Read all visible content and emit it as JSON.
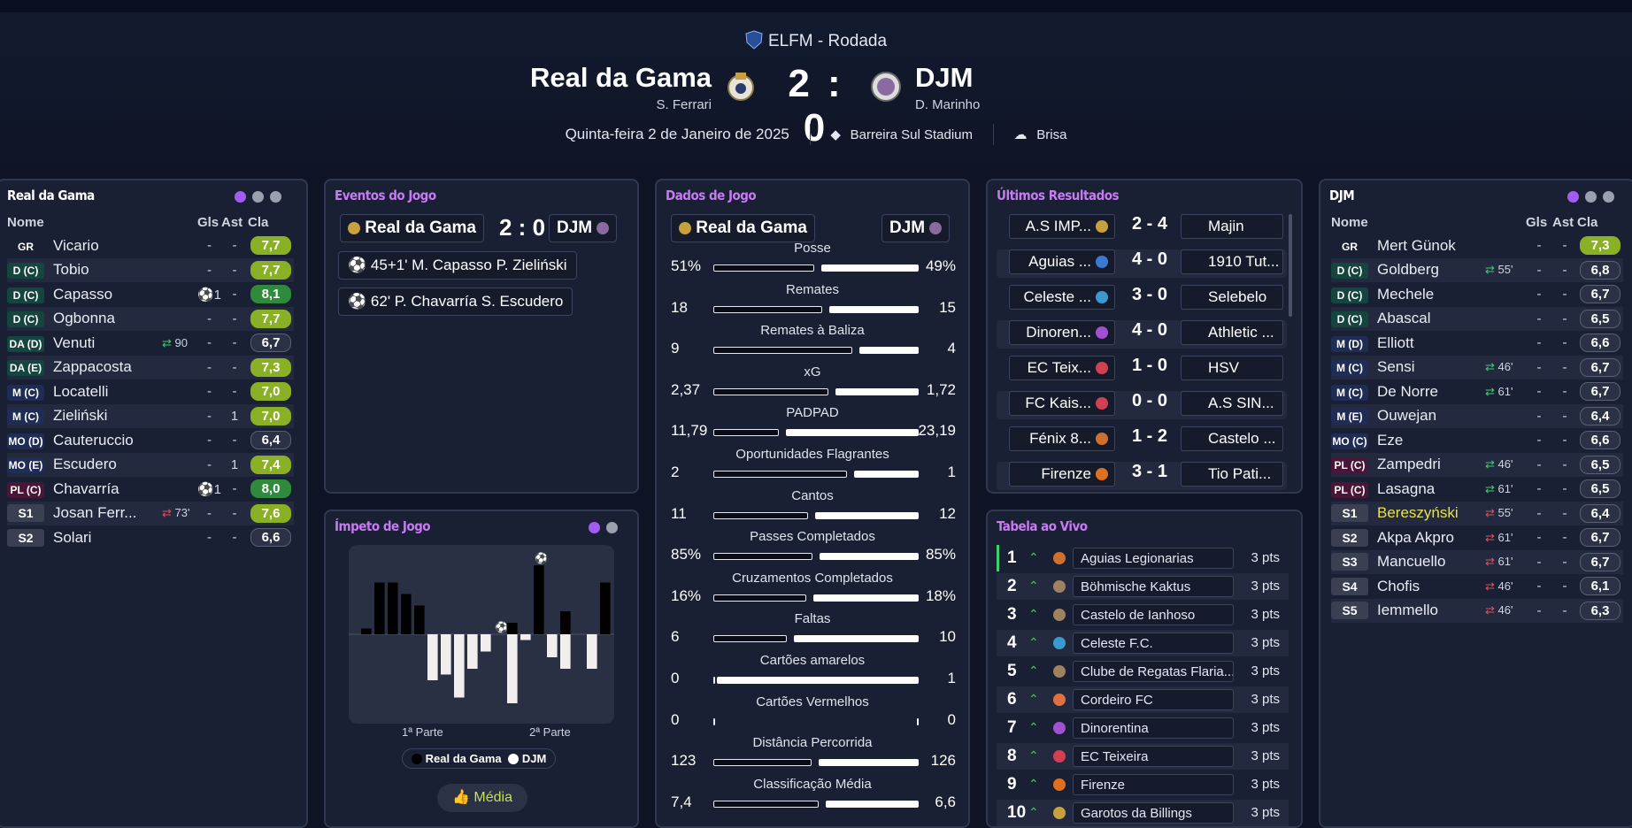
{
  "header": {
    "competition": "ELFM - Rodada",
    "home_team": "Real da Gama",
    "home_coach": "S. Ferrari",
    "away_team": "DJM",
    "away_coach": "D. Marinho",
    "score": "2 : 0",
    "date": "Quinta-feira 2 de Janeiro de 2025",
    "stadium": "Barreira Sul Stadium",
    "weather": "Brisa"
  },
  "home_panel": {
    "title": "Real da Gama",
    "cols": {
      "name": "Nome",
      "gls": "Gls",
      "ast": "Ast",
      "cla": "Cla"
    },
    "players": [
      {
        "pos": "GR",
        "name": "Vicario",
        "gls": "-",
        "ast": "-",
        "rating": "7,7",
        "sub": ""
      },
      {
        "pos": "D (C)",
        "name": "Tobio",
        "gls": "-",
        "ast": "-",
        "rating": "7,7",
        "sub": ""
      },
      {
        "pos": "D (C)",
        "name": "Capasso",
        "gls": "⚽1",
        "ast": "-",
        "rating": "8,1",
        "sub": ""
      },
      {
        "pos": "D (C)",
        "name": "Ogbonna",
        "gls": "-",
        "ast": "-",
        "rating": "7,7",
        "sub": ""
      },
      {
        "pos": "DA (D)",
        "name": "Venuti",
        "gls": "-",
        "ast": "-",
        "rating": "6,7",
        "sub": "90"
      },
      {
        "pos": "DA (E)",
        "name": "Zappacosta",
        "gls": "-",
        "ast": "-",
        "rating": "7,3",
        "sub": ""
      },
      {
        "pos": "M (C)",
        "name": "Locatelli",
        "gls": "-",
        "ast": "-",
        "rating": "7,0",
        "sub": ""
      },
      {
        "pos": "M (C)",
        "name": "Zieliński",
        "gls": "-",
        "ast": "1",
        "rating": "7,0",
        "sub": ""
      },
      {
        "pos": "MO (D)",
        "name": "Cauteruccio",
        "gls": "-",
        "ast": "-",
        "rating": "6,4",
        "sub": ""
      },
      {
        "pos": "MO (E)",
        "name": "Escudero",
        "gls": "-",
        "ast": "1",
        "rating": "7,4",
        "sub": ""
      },
      {
        "pos": "PL (C)",
        "name": "Chavarría",
        "gls": "⚽1",
        "ast": "-",
        "rating": "8,0",
        "sub": ""
      },
      {
        "pos": "S1",
        "name": "Josan Ferr...",
        "gls": "-",
        "ast": "-",
        "rating": "7,6",
        "sub": "73'"
      },
      {
        "pos": "S2",
        "name": "Solari",
        "gls": "-",
        "ast": "-",
        "rating": "6,6",
        "sub": ""
      }
    ]
  },
  "away_panel": {
    "title": "DJM",
    "cols": {
      "name": "Nome",
      "gls": "Gls",
      "ast": "Ast",
      "cla": "Cla"
    },
    "players": [
      {
        "pos": "GR",
        "name": "Mert Günok",
        "gls": "-",
        "ast": "-",
        "rating": "7,3",
        "sub": ""
      },
      {
        "pos": "D (C)",
        "name": "Goldberg",
        "gls": "-",
        "ast": "-",
        "rating": "6,8",
        "sub": "55'"
      },
      {
        "pos": "D (C)",
        "name": "Mechele",
        "gls": "-",
        "ast": "-",
        "rating": "6,7",
        "sub": ""
      },
      {
        "pos": "D (C)",
        "name": "Abascal",
        "gls": "-",
        "ast": "-",
        "rating": "6,5",
        "sub": ""
      },
      {
        "pos": "M (D)",
        "name": "Elliott",
        "gls": "-",
        "ast": "-",
        "rating": "6,6",
        "sub": ""
      },
      {
        "pos": "M (C)",
        "name": "Sensi",
        "gls": "-",
        "ast": "-",
        "rating": "6,7",
        "sub": "46'"
      },
      {
        "pos": "M (C)",
        "name": "De Norre",
        "gls": "-",
        "ast": "-",
        "rating": "6,7",
        "sub": "61'"
      },
      {
        "pos": "M (E)",
        "name": "Ouwejan",
        "gls": "-",
        "ast": "-",
        "rating": "6,4",
        "sub": ""
      },
      {
        "pos": "MO (C)",
        "name": "Eze",
        "gls": "-",
        "ast": "-",
        "rating": "6,6",
        "sub": ""
      },
      {
        "pos": "PL (C)",
        "name": "Zampedri",
        "gls": "-",
        "ast": "-",
        "rating": "6,5",
        "sub": "46'"
      },
      {
        "pos": "PL (C)",
        "name": "Lasagna",
        "gls": "-",
        "ast": "-",
        "rating": "6,5",
        "sub": "61'"
      },
      {
        "pos": "S1",
        "name": "Bereszyński",
        "gls": "-",
        "ast": "-",
        "rating": "6,4",
        "sub": "55'"
      },
      {
        "pos": "S2",
        "name": "Akpa Akpro",
        "gls": "-",
        "ast": "-",
        "rating": "6,7",
        "sub": "61'"
      },
      {
        "pos": "S3",
        "name": "Mancuello",
        "gls": "-",
        "ast": "-",
        "rating": "6,7",
        "sub": "61'"
      },
      {
        "pos": "S4",
        "name": "Chofis",
        "gls": "-",
        "ast": "-",
        "rating": "6,1",
        "sub": "46'"
      },
      {
        "pos": "S5",
        "name": "Iemmello",
        "gls": "-",
        "ast": "-",
        "rating": "6,3",
        "sub": "46'"
      }
    ]
  },
  "events": {
    "title": "Eventos do Jogo",
    "home": "Real da Gama",
    "score": "2 : 0",
    "away": "DJM",
    "items": [
      "45+1' M. Capasso P. Zieliński",
      "62' P. Chavarría S. Escudero"
    ]
  },
  "momentum": {
    "title": "Ímpeto de Jogo",
    "first_half": "1ª Parte",
    "second_half": "2ª Parte",
    "legend_home": "Real da Gama",
    "legend_away": "DJM",
    "button": "Média"
  },
  "chart_data": {
    "type": "bar",
    "title": "Ímpeto de Jogo",
    "series": [
      {
        "name": "Real da Gama",
        "values": [
          1,
          9,
          9,
          7,
          5,
          0,
          0,
          0,
          0,
          0,
          0,
          2,
          0,
          12,
          0,
          4,
          0,
          0,
          9
        ]
      },
      {
        "name": "DJM",
        "values": [
          0,
          0,
          0,
          0,
          0,
          8,
          7,
          11,
          6,
          3,
          0,
          12,
          1,
          0,
          4,
          6,
          0,
          6,
          0
        ]
      }
    ],
    "xlabel": "",
    "ylabel": ""
  },
  "stats": {
    "title": "Dados de Jogo",
    "home": "Real da Gama",
    "away": "DJM",
    "rows": [
      {
        "label": "Posse",
        "h": "51%",
        "a": "49%",
        "hv": 51,
        "av": 49
      },
      {
        "label": "Remates",
        "h": "18",
        "a": "15",
        "hv": 18,
        "av": 15
      },
      {
        "label": "Remates à Baliza",
        "h": "9",
        "a": "4",
        "hv": 9,
        "av": 4
      },
      {
        "label": "xG",
        "h": "2,37",
        "a": "1,72",
        "hv": 2.37,
        "av": 1.72
      },
      {
        "label": "PADPAD",
        "h": "11,79",
        "a": "23,19",
        "hv": 11.79,
        "av": 23.19
      },
      {
        "label": "Oportunidades Flagrantes",
        "h": "2",
        "a": "1",
        "hv": 2,
        "av": 1
      },
      {
        "label": "Cantos",
        "h": "11",
        "a": "12",
        "hv": 11,
        "av": 12
      },
      {
        "label": "Passes Completados",
        "h": "85%",
        "a": "85%",
        "hv": 85,
        "av": 85
      },
      {
        "label": "Cruzamentos Completados",
        "h": "16%",
        "a": "18%",
        "hv": 16,
        "av": 18
      },
      {
        "label": "Faltas",
        "h": "6",
        "a": "10",
        "hv": 6,
        "av": 10
      },
      {
        "label": "Cartões amarelos",
        "h": "0",
        "a": "1",
        "hv": 0,
        "av": 1
      },
      {
        "label": "Cartões Vermelhos",
        "h": "0",
        "a": "0",
        "hv": 0,
        "av": 0
      },
      {
        "label": "Distância Percorrida",
        "h": "123",
        "a": "126",
        "hv": 123,
        "av": 126
      },
      {
        "label": "Classificação Média",
        "h": "7,4",
        "a": "6,6",
        "hv": 7.4,
        "av": 6.6
      }
    ]
  },
  "results": {
    "title": "Últimos Resultados",
    "items": [
      {
        "h": "A.S IMP...",
        "s": "2 - 4",
        "a": "Majin"
      },
      {
        "h": "Aguias ...",
        "s": "4 - 0",
        "a": "1910 Tut..."
      },
      {
        "h": "Celeste ...",
        "s": "3 - 0",
        "a": "Selebelo"
      },
      {
        "h": "Dinoren...",
        "s": "4 - 0",
        "a": "Athletic ..."
      },
      {
        "h": "EC Teix...",
        "s": "1 - 0",
        "a": "HSV"
      },
      {
        "h": "FC Kais...",
        "s": "0 - 0",
        "a": "A.S SIN..."
      },
      {
        "h": "Fénix 8...",
        "s": "1 - 2",
        "a": "Castelo ..."
      },
      {
        "h": "Firenze",
        "s": "3 - 1",
        "a": "Tio Pati..."
      }
    ]
  },
  "table": {
    "title": "Tabela ao Vivo",
    "rows": [
      {
        "rank": "1",
        "team": "Aguias Legionarias",
        "pts": "3 pts"
      },
      {
        "rank": "2",
        "team": "Böhmische Kaktus",
        "pts": "3 pts"
      },
      {
        "rank": "3",
        "team": "Castelo de Ianhoso",
        "pts": "3 pts"
      },
      {
        "rank": "4",
        "team": "Celeste F.C.",
        "pts": "3 pts"
      },
      {
        "rank": "5",
        "team": "Clube de Regatas Flaria...",
        "pts": "3 pts"
      },
      {
        "rank": "6",
        "team": "Cordeiro FC",
        "pts": "3 pts"
      },
      {
        "rank": "7",
        "team": "Dinorentina",
        "pts": "3 pts"
      },
      {
        "rank": "8",
        "team": "EC Teixeira",
        "pts": "3 pts"
      },
      {
        "rank": "9",
        "team": "Firenze",
        "pts": "3 pts"
      },
      {
        "rank": "10",
        "team": "Garotos da Billings",
        "pts": "3 pts"
      }
    ]
  },
  "colors": {
    "accent": "#a15df3",
    "rating_good": "#8ab126",
    "rating_top": "#2f8a3b",
    "sub_in": "#3ecf6e",
    "sub_out": "#e0505a",
    "highlight": "#e8e04a"
  }
}
